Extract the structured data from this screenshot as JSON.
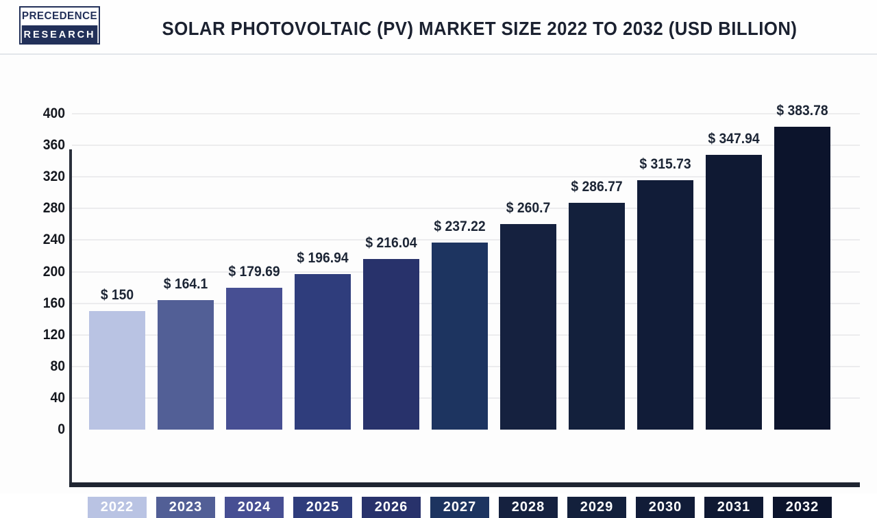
{
  "logo": {
    "line1": "PRECEDENCE",
    "line2": "RESEARCH"
  },
  "header": {
    "title": "SOLAR PHOTOVOLTAIC (PV) MARKET SIZE 2022 TO 2032 (USD BILLION)"
  },
  "chart_data": {
    "type": "bar",
    "title": "SOLAR PHOTOVOLTAIC (PV) MARKET SIZE 2022 TO 2032 (USD BILLION)",
    "categories": [
      "2022",
      "2023",
      "2024",
      "2025",
      "2026",
      "2027",
      "2028",
      "2029",
      "2030",
      "2031",
      "2032"
    ],
    "values": [
      150,
      164.1,
      179.69,
      196.94,
      216.04,
      237.22,
      260.7,
      286.77,
      315.73,
      347.94,
      383.78
    ],
    "value_labels": [
      "$ 150",
      "$ 164.1",
      "$ 179.69",
      "$ 196.94",
      "$ 216.04",
      "$ 237.22",
      "$ 260.7",
      "$ 286.77",
      "$ 315.73",
      "$ 347.94",
      "$ 383.78"
    ],
    "bar_colors": [
      "#b9c3e3",
      "#525f96",
      "#474f93",
      "#2f3d7c",
      "#28326b",
      "#1d3460",
      "#15213f",
      "#13203c",
      "#111c38",
      "#0f1933",
      "#0c142c"
    ],
    "xlabel": "",
    "ylabel": "",
    "ylim": [
      0,
      400
    ],
    "yticks": [
      0,
      40,
      80,
      120,
      160,
      200,
      240,
      280,
      320,
      360,
      400
    ],
    "grid": "horizontal",
    "legend": "none",
    "unit": "USD Billion"
  },
  "colors": {
    "axis": "#1f2531",
    "grid": "#ececee",
    "title_text": "#1b2130",
    "tick_text": "#15181f",
    "value_text": "#1c2535",
    "year_text": "#ffffff",
    "logo_navy": "#223059",
    "background": "#fdfdfd"
  }
}
